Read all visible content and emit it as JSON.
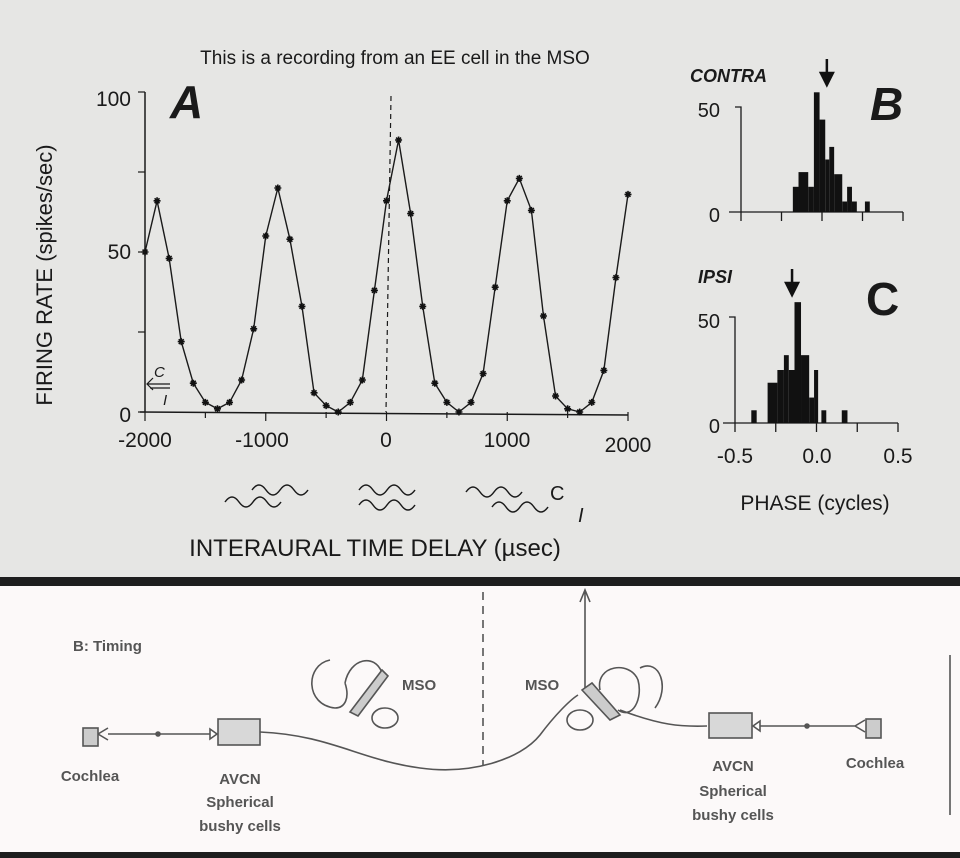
{
  "title": "This is a recording from an EE cell in the MSO",
  "colors": {
    "ink": "#1a1a1a",
    "paper_top": "#e6e6e4",
    "paper_bottom": "#fcf9f9",
    "band": "#1e1e1e",
    "diagram_ink": "#555555"
  },
  "chart_data": [
    {
      "panel": "A",
      "type": "line",
      "marker": "asterisk",
      "xlabel": "INTERAURAL TIME DELAY (µsec)",
      "ylabel": "FIRING RATE (spikes/sec)",
      "xlim": [
        -2000,
        2000
      ],
      "ylim": [
        0,
        100
      ],
      "x_ticks": [
        "-2000",
        "-1000",
        "0",
        "1000",
        "2000"
      ],
      "y_ticks": [
        "0",
        "50",
        "100"
      ],
      "x": [
        -2000,
        -1900,
        -1800,
        -1700,
        -1600,
        -1500,
        -1400,
        -1300,
        -1200,
        -1100,
        -1000,
        -900,
        -800,
        -700,
        -600,
        -500,
        -400,
        -300,
        -200,
        -100,
        0,
        100,
        200,
        300,
        400,
        500,
        600,
        700,
        800,
        900,
        1000,
        1100,
        1200,
        1300,
        1400,
        1500,
        1600,
        1700,
        1800,
        1900,
        2000
      ],
      "y": [
        50,
        66,
        48,
        22,
        9,
        3,
        1,
        3,
        10,
        26,
        55,
        70,
        54,
        33,
        6,
        2,
        0,
        3,
        10,
        38,
        66,
        85,
        62,
        33,
        9,
        3,
        0,
        3,
        12,
        39,
        66,
        73,
        63,
        30,
        5,
        1,
        0,
        3,
        13,
        42,
        68
      ],
      "reference_line_x": 0,
      "annotations": {
        "monaural_c": "C",
        "monaural_i": "I",
        "wave_c": "C",
        "wave_i": "I"
      },
      "grid": false
    },
    {
      "panel": "B",
      "type": "bar",
      "label": "CONTRA",
      "xlabel": "PHASE (cycles)",
      "xlim": [
        -0.5,
        0.5
      ],
      "ylim": [
        0,
        50
      ],
      "x_ticks": [
        "-0.5",
        "0.0",
        "0.5"
      ],
      "y_ticks": [
        "0",
        "50"
      ],
      "bins": [
        [
          -0.18,
          -0.145,
          12
        ],
        [
          -0.145,
          -0.085,
          19
        ],
        [
          -0.085,
          -0.05,
          12
        ],
        [
          -0.05,
          -0.015,
          57
        ],
        [
          -0.015,
          0.02,
          44
        ],
        [
          0.02,
          0.045,
          25
        ],
        [
          0.045,
          0.075,
          31
        ],
        [
          0.075,
          0.125,
          18
        ],
        [
          0.125,
          0.155,
          5
        ],
        [
          0.155,
          0.185,
          12
        ],
        [
          0.185,
          0.215,
          5
        ],
        [
          0.265,
          0.295,
          5
        ]
      ],
      "mean_phase_arrow": 0.03
    },
    {
      "panel": "C",
      "type": "bar",
      "label": "IPSI",
      "xlabel": "PHASE (cycles)",
      "xlim": [
        -0.5,
        0.5
      ],
      "ylim": [
        0,
        50
      ],
      "x_ticks": [
        "-0.5",
        "0.0",
        "0.5"
      ],
      "y_ticks": [
        "0",
        "50"
      ],
      "bins": [
        [
          -0.4,
          -0.367,
          6
        ],
        [
          -0.3,
          -0.24,
          19
        ],
        [
          -0.24,
          -0.2,
          25
        ],
        [
          -0.2,
          -0.17,
          32
        ],
        [
          -0.17,
          -0.135,
          25
        ],
        [
          -0.135,
          -0.095,
          57
        ],
        [
          -0.095,
          -0.045,
          32
        ],
        [
          -0.045,
          -0.015,
          12
        ],
        [
          -0.015,
          0.01,
          25
        ],
        [
          0.03,
          0.06,
          6
        ],
        [
          0.155,
          0.19,
          6
        ]
      ],
      "mean_phase_arrow": -0.15
    }
  ],
  "panel_letters": {
    "a": "A",
    "b": "B",
    "c": "C"
  },
  "diagram": {
    "heading": "B: Timing",
    "left": {
      "cochlea": "Cochlea",
      "avcn": "AVCN",
      "spherical": "Spherical",
      "bushy": "bushy cells",
      "mso": "MSO"
    },
    "right": {
      "cochlea": "Cochlea",
      "avcn": "AVCN",
      "spherical": "Spherical",
      "bushy": "bushy cells",
      "mso": "MSO"
    }
  }
}
